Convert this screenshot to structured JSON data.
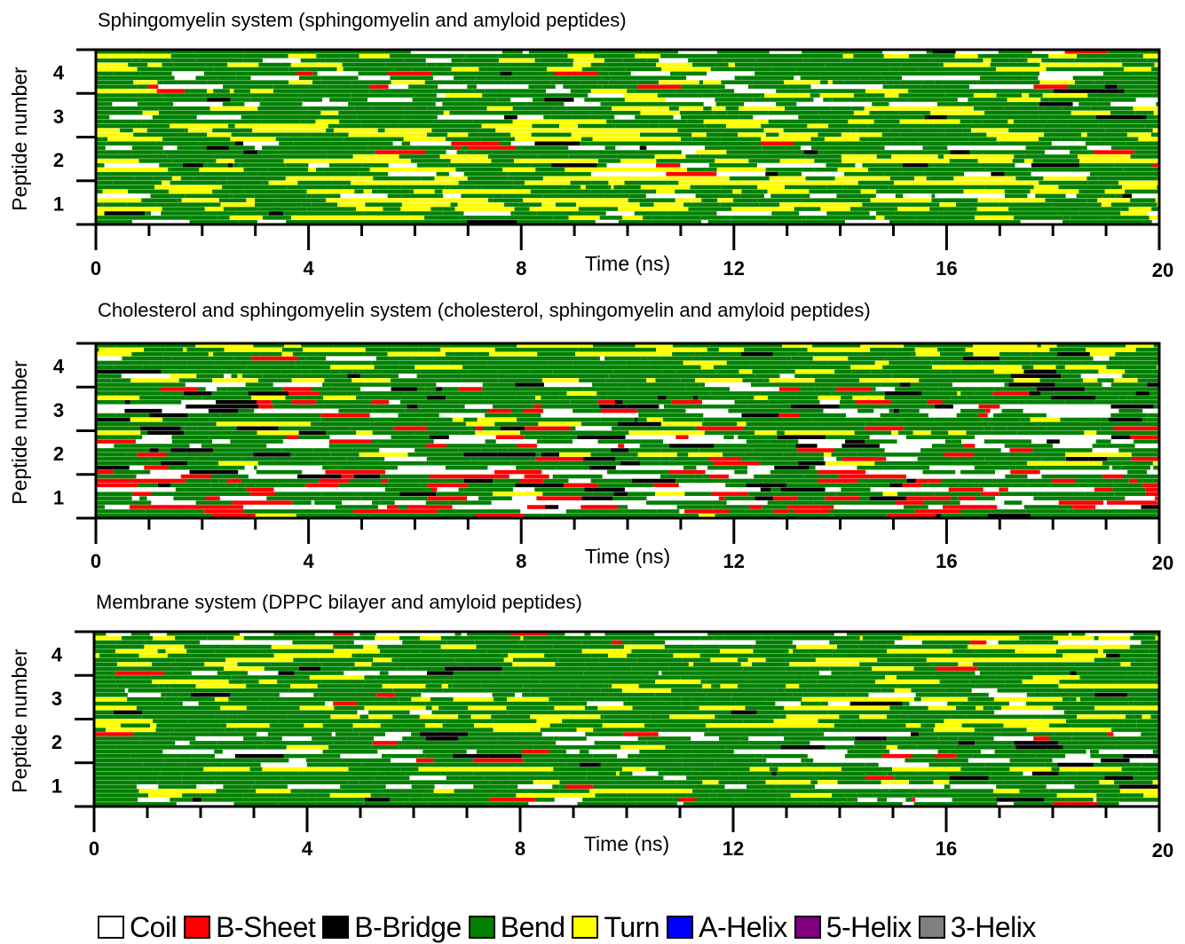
{
  "chart_data": [
    {
      "type": "heatmap",
      "title": "Sphingomyelin system (sphingomyelin and amyloid peptides)",
      "xlabel": "Time (ns)",
      "ylabel": "Peptide number",
      "xlim": [
        0,
        20
      ],
      "xticks": [
        "0",
        "4",
        "8",
        "12",
        "16",
        "20"
      ],
      "yticks": [
        "1",
        "2",
        "3",
        "4"
      ],
      "categories": [
        "1",
        "2",
        "3",
        "4"
      ],
      "composition_note": "",
      "series": [
        {
          "name": "Coil",
          "values": [
            0.22,
            0.2,
            0.24,
            0.22
          ]
        },
        {
          "name": "B-Sheet",
          "values": [
            0.0,
            0.03,
            0.0,
            0.02
          ]
        },
        {
          "name": "B-Bridge",
          "values": [
            0.02,
            0.03,
            0.02,
            0.02
          ]
        },
        {
          "name": "Bend",
          "values": [
            0.46,
            0.44,
            0.44,
            0.44
          ]
        },
        {
          "name": "Turn",
          "values": [
            0.3,
            0.3,
            0.3,
            0.3
          ]
        }
      ]
    },
    {
      "type": "heatmap",
      "title": "Cholesterol and sphingomyelin system (cholesterol, sphingomyelin and amyloid peptides)",
      "xlabel": "Time (ns)",
      "ylabel": "Peptide number",
      "xlim": [
        0,
        20
      ],
      "xticks": [
        "0",
        "4",
        "8",
        "12",
        "16",
        "20"
      ],
      "yticks": [
        "1",
        "2",
        "3",
        "4"
      ],
      "categories": [
        "1",
        "2",
        "3",
        "4"
      ],
      "series": [
        {
          "name": "Coil",
          "values": [
            0.3,
            0.32,
            0.26,
            0.22
          ]
        },
        {
          "name": "B-Sheet",
          "values": [
            0.14,
            0.05,
            0.07,
            0.01
          ]
        },
        {
          "name": "B-Bridge",
          "values": [
            0.04,
            0.05,
            0.06,
            0.04
          ]
        },
        {
          "name": "Bend",
          "values": [
            0.44,
            0.43,
            0.45,
            0.46
          ]
        },
        {
          "name": "Turn",
          "values": [
            0.08,
            0.15,
            0.16,
            0.25
          ]
        },
        {
          "name": "3-Helix",
          "values": [
            0.0,
            0.0,
            0.0,
            0.02
          ]
        }
      ]
    },
    {
      "type": "heatmap",
      "title": "Membrane system (DPPC bilayer and amyloid peptides)",
      "xlabel": "Time (ns)",
      "ylabel": "Peptide number",
      "xlim": [
        0,
        20
      ],
      "xticks": [
        "0",
        "4",
        "8",
        "12",
        "16",
        "20"
      ],
      "yticks": [
        "1",
        "2",
        "3",
        "4"
      ],
      "categories": [
        "1",
        "2",
        "3",
        "4"
      ],
      "series": [
        {
          "name": "Coil",
          "values": [
            0.22,
            0.22,
            0.2,
            0.2
          ]
        },
        {
          "name": "B-Sheet",
          "values": [
            0.02,
            0.03,
            0.01,
            0.01
          ]
        },
        {
          "name": "B-Bridge",
          "values": [
            0.03,
            0.02,
            0.02,
            0.02
          ]
        },
        {
          "name": "Bend",
          "values": [
            0.5,
            0.5,
            0.52,
            0.52
          ]
        },
        {
          "name": "Turn",
          "values": [
            0.23,
            0.23,
            0.25,
            0.25
          ]
        }
      ]
    }
  ],
  "legend": [
    {
      "name": "Coil",
      "color": "#ffffff"
    },
    {
      "name": "B-Sheet",
      "color": "#ff0000"
    },
    {
      "name": "B-Bridge",
      "color": "#000000"
    },
    {
      "name": "Bend",
      "color": "#008000"
    },
    {
      "name": "Turn",
      "color": "#ffff00"
    },
    {
      "name": "A-Helix",
      "color": "#0000ff"
    },
    {
      "name": "5-Helix",
      "color": "#800080"
    },
    {
      "name": "3-Helix",
      "color": "#808080"
    }
  ]
}
